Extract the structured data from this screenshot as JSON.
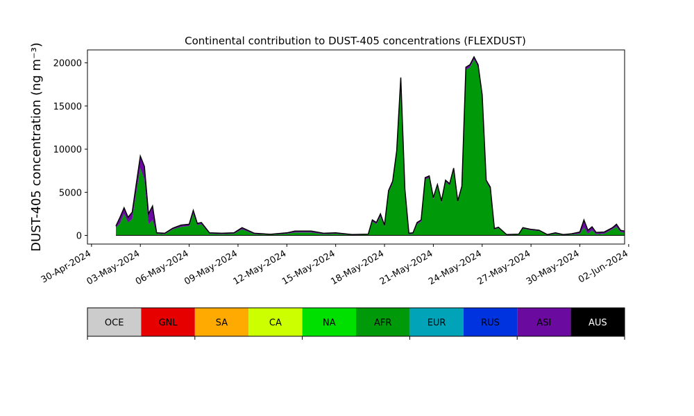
{
  "chart_data": {
    "type": "area",
    "title": "Continental contribution to DUST-405 concentrations (FLEXDUST)",
    "ylabel": "DUST-405 concentration (ng m⁻³)",
    "xlabel": "",
    "xlim": [
      "2024-04-29T18:00",
      "2024-06-01T18:00"
    ],
    "ylim": [
      -1000,
      21500
    ],
    "y_ticks": [
      0,
      5000,
      10000,
      15000,
      20000
    ],
    "x_ticks": [
      "30-Apr-2024",
      "03-May-2024",
      "06-May-2024",
      "09-May-2024",
      "12-May-2024",
      "15-May-2024",
      "18-May-2024",
      "21-May-2024",
      "24-May-2024",
      "27-May-2024",
      "30-May-2024",
      "02-Jun-2024"
    ],
    "x_tick_dates": [
      "2024-04-30",
      "2024-05-03",
      "2024-05-06",
      "2024-05-09",
      "2024-05-12",
      "2024-05-15",
      "2024-05-18",
      "2024-05-21",
      "2024-05-24",
      "2024-05-27",
      "2024-05-30",
      "2024-06-02"
    ],
    "grid": false,
    "stack_order": [
      "AFR",
      "ASI"
    ],
    "total_line_color": "#000000",
    "series": [
      {
        "name": "AFR",
        "color": "#00990a",
        "points": [
          [
            "2024-05-01T12:00",
            900
          ],
          [
            "2024-05-01T18:00",
            1400
          ],
          [
            "2024-05-02T00:00",
            2500
          ],
          [
            "2024-05-02T06:00",
            1500
          ],
          [
            "2024-05-02T12:00",
            1900
          ],
          [
            "2024-05-02T18:00",
            5000
          ],
          [
            "2024-05-03T00:00",
            7800
          ],
          [
            "2024-05-03T06:00",
            6500
          ],
          [
            "2024-05-03T12:00",
            1300
          ],
          [
            "2024-05-03T18:00",
            1800
          ],
          [
            "2024-05-04T00:00",
            200
          ],
          [
            "2024-05-04T12:00",
            150
          ],
          [
            "2024-05-05T00:00",
            700
          ],
          [
            "2024-05-05T12:00",
            1000
          ],
          [
            "2024-05-06T00:00",
            1100
          ],
          [
            "2024-05-06T06:00",
            2500
          ],
          [
            "2024-05-06T12:00",
            1200
          ],
          [
            "2024-05-06T18:00",
            1300
          ],
          [
            "2024-05-07T06:00",
            200
          ],
          [
            "2024-05-08T00:00",
            150
          ],
          [
            "2024-05-08T18:00",
            200
          ],
          [
            "2024-05-09T06:00",
            700
          ],
          [
            "2024-05-10T00:00",
            150
          ],
          [
            "2024-05-11T00:00",
            80
          ],
          [
            "2024-05-12T00:00",
            200
          ],
          [
            "2024-05-12T12:00",
            350
          ],
          [
            "2024-05-13T12:00",
            350
          ],
          [
            "2024-05-14T06:00",
            150
          ],
          [
            "2024-05-15T00:00",
            200
          ],
          [
            "2024-05-16T00:00",
            50
          ],
          [
            "2024-05-17T00:00",
            100
          ],
          [
            "2024-05-17T06:00",
            1600
          ],
          [
            "2024-05-17T12:00",
            1300
          ],
          [
            "2024-05-17T18:00",
            2200
          ],
          [
            "2024-05-18T00:00",
            1000
          ],
          [
            "2024-05-18T06:00",
            5000
          ],
          [
            "2024-05-18T12:00",
            6000
          ],
          [
            "2024-05-18T18:00",
            9500
          ],
          [
            "2024-05-19T00:00",
            18000
          ],
          [
            "2024-05-19T06:00",
            5200
          ],
          [
            "2024-05-19T12:00",
            150
          ],
          [
            "2024-05-19T18:00",
            200
          ],
          [
            "2024-05-20T00:00",
            1300
          ],
          [
            "2024-05-20T06:00",
            1600
          ],
          [
            "2024-05-20T12:00",
            6500
          ],
          [
            "2024-05-20T18:00",
            6700
          ],
          [
            "2024-05-21T00:00",
            4200
          ],
          [
            "2024-05-21T06:00",
            5700
          ],
          [
            "2024-05-21T12:00",
            3800
          ],
          [
            "2024-05-21T18:00",
            6200
          ],
          [
            "2024-05-22T00:00",
            5800
          ],
          [
            "2024-05-22T06:00",
            7600
          ],
          [
            "2024-05-22T12:00",
            3800
          ],
          [
            "2024-05-22T18:00",
            5500
          ],
          [
            "2024-05-23T00:00",
            19200
          ],
          [
            "2024-05-23T06:00",
            19500
          ],
          [
            "2024-05-23T12:00",
            20400
          ],
          [
            "2024-05-23T18:00",
            19500
          ],
          [
            "2024-05-24T00:00",
            16000
          ],
          [
            "2024-05-24T06:00",
            6200
          ],
          [
            "2024-05-24T12:00",
            5400
          ],
          [
            "2024-05-24T18:00",
            700
          ],
          [
            "2024-05-25T00:00",
            850
          ],
          [
            "2024-05-25T12:00",
            50
          ],
          [
            "2024-05-26T06:00",
            100
          ],
          [
            "2024-05-26T12:00",
            800
          ],
          [
            "2024-05-27T00:00",
            600
          ],
          [
            "2024-05-27T12:00",
            500
          ],
          [
            "2024-05-28T00:00",
            50
          ],
          [
            "2024-05-28T12:00",
            200
          ],
          [
            "2024-05-29T00:00",
            50
          ],
          [
            "2024-05-29T12:00",
            100
          ],
          [
            "2024-05-30T00:00",
            200
          ],
          [
            "2024-05-30T06:00",
            900
          ],
          [
            "2024-05-30T12:00",
            200
          ],
          [
            "2024-05-30T18:00",
            600
          ],
          [
            "2024-05-31T00:00",
            150
          ],
          [
            "2024-05-31T12:00",
            200
          ],
          [
            "2024-06-01T00:00",
            700
          ],
          [
            "2024-06-01T06:00",
            1000
          ],
          [
            "2024-06-01T12:00",
            400
          ],
          [
            "2024-06-01T18:00",
            300
          ]
        ]
      },
      {
        "name": "ASI",
        "color": "#6a0a9e",
        "points": [
          [
            "2024-05-01T12:00",
            200
          ],
          [
            "2024-05-01T18:00",
            700
          ],
          [
            "2024-05-02T00:00",
            700
          ],
          [
            "2024-05-02T06:00",
            600
          ],
          [
            "2024-05-02T12:00",
            800
          ],
          [
            "2024-05-02T18:00",
            1000
          ],
          [
            "2024-05-03T00:00",
            1400
          ],
          [
            "2024-05-03T06:00",
            1500
          ],
          [
            "2024-05-03T12:00",
            1200
          ],
          [
            "2024-05-03T18:00",
            1600
          ],
          [
            "2024-05-04T00:00",
            100
          ],
          [
            "2024-05-04T12:00",
            100
          ],
          [
            "2024-05-05T00:00",
            150
          ],
          [
            "2024-05-05T12:00",
            200
          ],
          [
            "2024-05-06T00:00",
            200
          ],
          [
            "2024-05-06T06:00",
            400
          ],
          [
            "2024-05-06T12:00",
            200
          ],
          [
            "2024-05-06T18:00",
            200
          ],
          [
            "2024-05-07T06:00",
            100
          ],
          [
            "2024-05-08T00:00",
            100
          ],
          [
            "2024-05-08T18:00",
            100
          ],
          [
            "2024-05-09T06:00",
            200
          ],
          [
            "2024-05-10T00:00",
            100
          ],
          [
            "2024-05-11T00:00",
            50
          ],
          [
            "2024-05-12T00:00",
            100
          ],
          [
            "2024-05-12T12:00",
            150
          ],
          [
            "2024-05-13T12:00",
            150
          ],
          [
            "2024-05-14T06:00",
            100
          ],
          [
            "2024-05-15T00:00",
            100
          ],
          [
            "2024-05-16T00:00",
            50
          ],
          [
            "2024-05-17T00:00",
            50
          ],
          [
            "2024-05-17T06:00",
            200
          ],
          [
            "2024-05-17T12:00",
            200
          ],
          [
            "2024-05-17T18:00",
            300
          ],
          [
            "2024-05-18T00:00",
            200
          ],
          [
            "2024-05-18T06:00",
            200
          ],
          [
            "2024-05-18T12:00",
            300
          ],
          [
            "2024-05-18T18:00",
            300
          ],
          [
            "2024-05-19T00:00",
            300
          ],
          [
            "2024-05-19T06:00",
            200
          ],
          [
            "2024-05-19T12:00",
            100
          ],
          [
            "2024-05-19T18:00",
            100
          ],
          [
            "2024-05-20T00:00",
            200
          ],
          [
            "2024-05-20T06:00",
            200
          ],
          [
            "2024-05-20T12:00",
            200
          ],
          [
            "2024-05-20T18:00",
            200
          ],
          [
            "2024-05-21T00:00",
            200
          ],
          [
            "2024-05-21T06:00",
            200
          ],
          [
            "2024-05-21T12:00",
            200
          ],
          [
            "2024-05-21T18:00",
            200
          ],
          [
            "2024-05-22T00:00",
            200
          ],
          [
            "2024-05-22T06:00",
            200
          ],
          [
            "2024-05-22T12:00",
            200
          ],
          [
            "2024-05-22T18:00",
            200
          ],
          [
            "2024-05-23T00:00",
            300
          ],
          [
            "2024-05-23T06:00",
            300
          ],
          [
            "2024-05-23T12:00",
            300
          ],
          [
            "2024-05-23T18:00",
            300
          ],
          [
            "2024-05-24T00:00",
            300
          ],
          [
            "2024-05-24T06:00",
            200
          ],
          [
            "2024-05-24T12:00",
            200
          ],
          [
            "2024-05-24T18:00",
            100
          ],
          [
            "2024-05-25T00:00",
            100
          ],
          [
            "2024-05-25T12:00",
            50
          ],
          [
            "2024-05-26T06:00",
            50
          ],
          [
            "2024-05-26T12:00",
            100
          ],
          [
            "2024-05-27T00:00",
            100
          ],
          [
            "2024-05-27T12:00",
            100
          ],
          [
            "2024-05-28T00:00",
            50
          ],
          [
            "2024-05-28T12:00",
            100
          ],
          [
            "2024-05-29T00:00",
            50
          ],
          [
            "2024-05-29T12:00",
            100
          ],
          [
            "2024-05-30T00:00",
            200
          ],
          [
            "2024-05-30T06:00",
            900
          ],
          [
            "2024-05-30T12:00",
            400
          ],
          [
            "2024-05-30T18:00",
            400
          ],
          [
            "2024-05-31T00:00",
            200
          ],
          [
            "2024-05-31T12:00",
            200
          ],
          [
            "2024-06-01T00:00",
            200
          ],
          [
            "2024-06-01T06:00",
            300
          ],
          [
            "2024-06-01T12:00",
            200
          ],
          [
            "2024-06-01T18:00",
            200
          ]
        ]
      }
    ]
  },
  "legend": {
    "placement": "bottom",
    "items": [
      {
        "label": "OCE",
        "color": "#cccccc",
        "text_color": "#000000"
      },
      {
        "label": "GNL",
        "color": "#e60000",
        "text_color": "#000000"
      },
      {
        "label": "SA",
        "color": "#ffaa00",
        "text_color": "#000000"
      },
      {
        "label": "CA",
        "color": "#ccff00",
        "text_color": "#000000"
      },
      {
        "label": "NA",
        "color": "#00e000",
        "text_color": "#000000"
      },
      {
        "label": "AFR",
        "color": "#00990a",
        "text_color": "#000000"
      },
      {
        "label": "EUR",
        "color": "#00a3b8",
        "text_color": "#000000"
      },
      {
        "label": "RUS",
        "color": "#0033e0",
        "text_color": "#000000"
      },
      {
        "label": "ASI",
        "color": "#6a0a9e",
        "text_color": "#000000"
      },
      {
        "label": "AUS",
        "color": "#000000",
        "text_color": "#ffffff"
      }
    ]
  }
}
